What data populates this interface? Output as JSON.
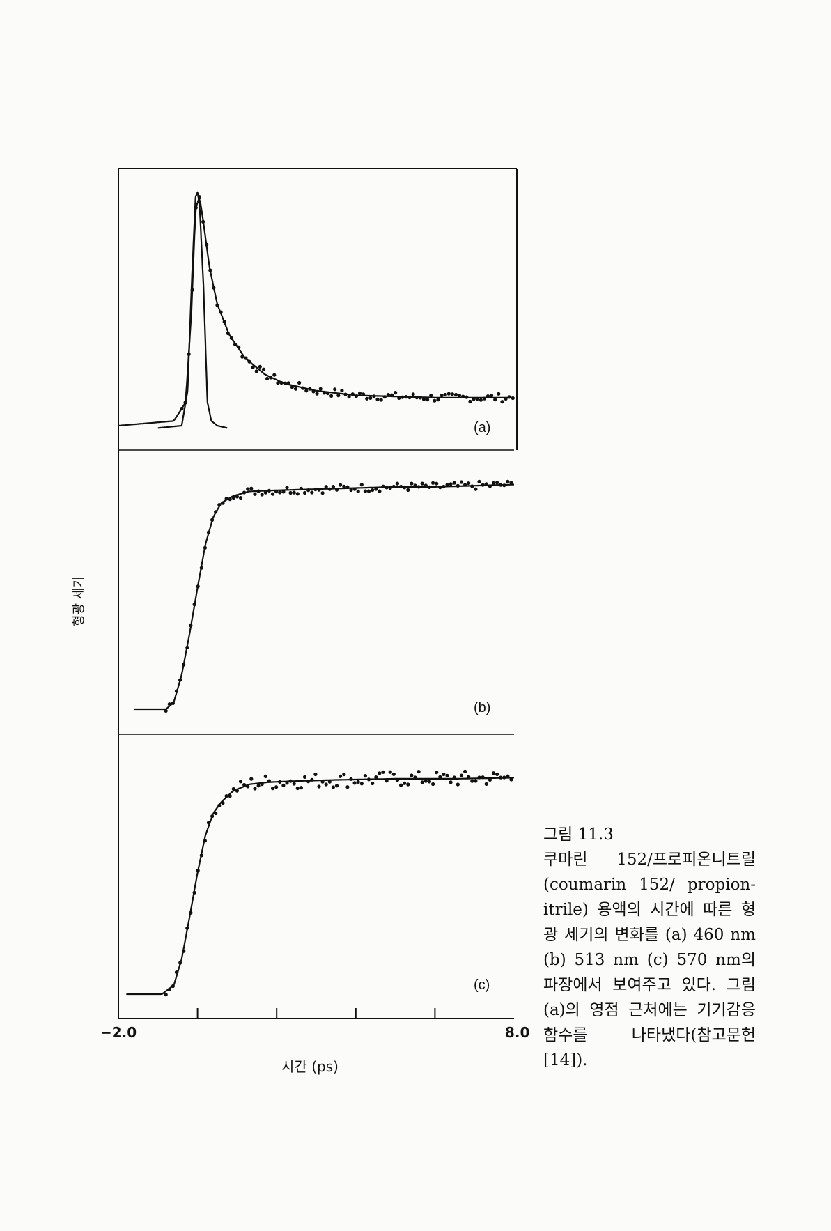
{
  "figure": {
    "ylabel": "형광 세기",
    "xlabel": "시간 (ps)",
    "x_min_label": "−2.0",
    "x_max_label": "8.0"
  },
  "caption": {
    "number": "그림 11.3",
    "text": "쿠마린 152/프로피온니트릴 (coumarin 152/ propion-itrile) 용액의 시간에 따른 형광 세기의 변화를 (a) 460 nm (b) 513 nm (c) 570 nm의 파장에서 보여주고 있다. 그림 (a)의 영점 근처에는 기기감응함수를 나타냈다(참고문헌 [14])."
  },
  "chart_data": [
    {
      "type": "line",
      "label": "(a)",
      "xlim": [
        -2.0,
        8.0
      ],
      "ylim": [
        0,
        1.0
      ],
      "series": [
        {
          "x": [
            -2.0,
            -0.6,
            -0.3,
            -0.15,
            -0.05,
            0.05,
            0.15,
            0.3,
            0.5,
            0.8,
            1.2,
            1.7,
            2.2,
            3.0,
            4.0,
            5.0,
            6.0,
            7.0,
            8.0
          ],
          "y": [
            0.0,
            0.02,
            0.1,
            0.5,
            0.93,
            0.98,
            0.87,
            0.68,
            0.52,
            0.39,
            0.29,
            0.22,
            0.18,
            0.15,
            0.13,
            0.125,
            0.12,
            0.12,
            0.12
          ]
        },
        {
          "x": [
            -1.0,
            -0.4,
            -0.25,
            -0.15,
            -0.05,
            0.0,
            0.05,
            0.15,
            0.25,
            0.35,
            0.5,
            0.75
          ],
          "y": [
            -0.01,
            0.0,
            0.15,
            0.6,
            0.98,
            1.0,
            0.95,
            0.6,
            0.1,
            0.02,
            0.0,
            -0.01
          ]
        }
      ]
    },
    {
      "type": "line",
      "label": "(b)",
      "xlim": [
        -2.0,
        8.0
      ],
      "ylim": [
        0,
        1.0
      ],
      "series": [
        {
          "x": [
            -1.6,
            -0.8,
            -0.6,
            -0.4,
            -0.2,
            0.0,
            0.2,
            0.4,
            0.6,
            0.9,
            1.3,
            2.0,
            3.0,
            4.0,
            5.0,
            6.0,
            7.0,
            8.0
          ],
          "y": [
            0.0,
            0.0,
            0.03,
            0.15,
            0.33,
            0.53,
            0.72,
            0.84,
            0.9,
            0.93,
            0.95,
            0.955,
            0.96,
            0.965,
            0.97,
            0.97,
            0.975,
            0.98
          ]
        }
      ]
    },
    {
      "type": "line",
      "label": "(c)",
      "xlim": [
        -2.0,
        8.0
      ],
      "ylim": [
        0,
        1.0
      ],
      "series": [
        {
          "x": [
            -1.8,
            -0.9,
            -0.6,
            -0.4,
            -0.2,
            0.0,
            0.2,
            0.4,
            0.6,
            0.9,
            1.3,
            1.8,
            2.5,
            3.5,
            5.0,
            6.5,
            8.0
          ],
          "y": [
            0.0,
            0.0,
            0.04,
            0.16,
            0.35,
            0.55,
            0.72,
            0.82,
            0.87,
            0.92,
            0.95,
            0.96,
            0.965,
            0.97,
            0.975,
            0.975,
            0.98
          ]
        }
      ]
    }
  ]
}
